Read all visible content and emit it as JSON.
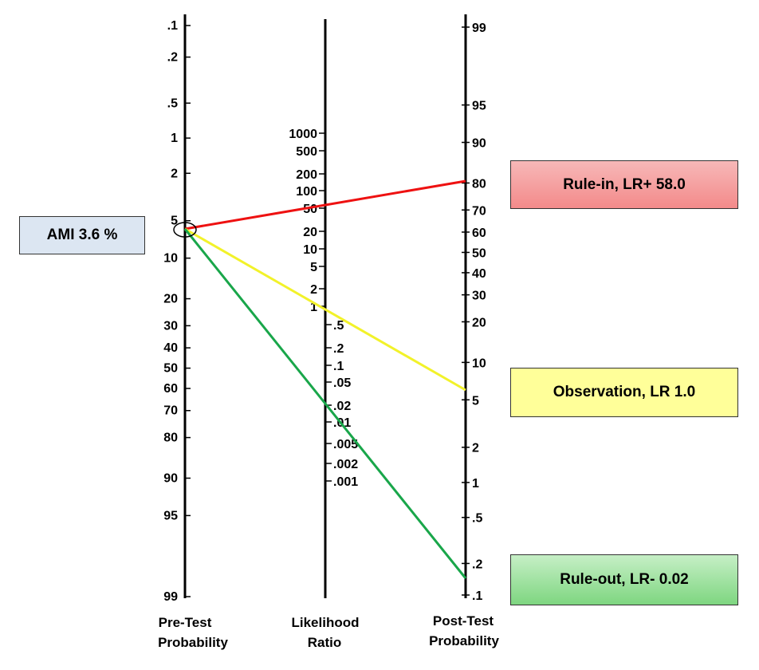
{
  "colors": {
    "axis": "#000000",
    "rule_in_line": "#ee1111",
    "observation_line": "#f2f22a",
    "rule_out_line": "#19a64a",
    "ami_box_bg": "#dce6f2",
    "rule_in_box_bg_from": "#f7b8b8",
    "rule_in_box_bg_to": "#f38a8a",
    "observation_box_bg": "#ffff99",
    "rule_out_box_bg_from": "#c6efc6",
    "rule_out_box_bg_to": "#7ed680"
  },
  "axes": {
    "pre_test": {
      "title_line1": "Pre-Test",
      "title_line2": "Probability",
      "ticks": [
        ".1",
        ".2",
        ".5",
        "1",
        "2",
        "5",
        "10",
        "20",
        "30",
        "40",
        "50",
        "60",
        "70",
        "80",
        "90",
        "95",
        "99"
      ]
    },
    "likelihood_ratio": {
      "title_line1": "Likelihood",
      "title_line2": "Ratio",
      "ticks_left": [
        "1000",
        "500",
        "200",
        "100",
        "50",
        "20",
        "10",
        "5",
        "2",
        "1"
      ],
      "ticks_right": [
        ".5",
        ".2",
        ".1",
        ".05",
        ".02",
        ".01",
        ".005",
        ".002",
        ".001"
      ]
    },
    "post_test": {
      "title_line1": "Post-Test",
      "title_line2": "Probability",
      "ticks": [
        "99",
        "95",
        "90",
        "80",
        "70",
        "60",
        "50",
        "40",
        "30",
        "20",
        "10",
        "5",
        "2",
        "1",
        ".5",
        ".2",
        ".1"
      ]
    }
  },
  "lines": [
    {
      "name": "rule-in",
      "pre_test": 3.6,
      "likelihood_ratio": 58.0,
      "post_test": 80
    },
    {
      "name": "observation",
      "pre_test": 3.6,
      "likelihood_ratio": 1.0,
      "post_test": 5
    },
    {
      "name": "rule-out",
      "pre_test": 3.6,
      "likelihood_ratio": 0.02,
      "post_test": 0.15
    }
  ],
  "labels": {
    "ami": "AMI 3.6  %",
    "rule_in": "Rule-in, LR+ 58.0",
    "observation": "Observation, LR 1.0",
    "rule_out": "Rule-out, LR- 0.02"
  }
}
